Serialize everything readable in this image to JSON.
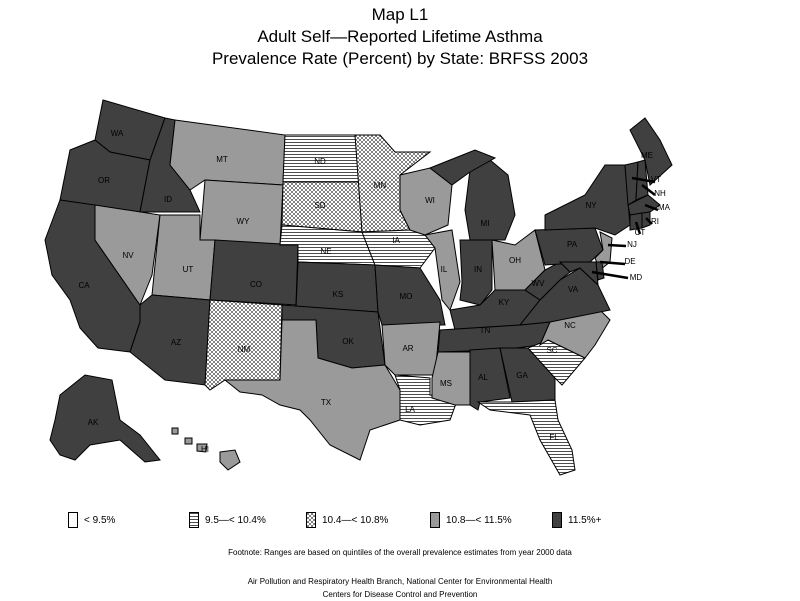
{
  "title": {
    "line1": "Map L1",
    "line2": "Adult Self—Reported Lifetime Asthma",
    "line3": "Prevalence Rate (Percent) by State: BRFSS 2003"
  },
  "legend": [
    {
      "key": "c1",
      "label": "< 9.5%"
    },
    {
      "key": "c2",
      "label": "9.5—< 10.4%"
    },
    {
      "key": "c3",
      "label": "10.4—< 10.8%"
    },
    {
      "key": "c4",
      "label": "10.8—< 11.5%"
    },
    {
      "key": "c5",
      "label": "11.5%+"
    }
  ],
  "footnote": "Footnote: Ranges are based on quintiles of the overall prevalence estimates from year 2000 data",
  "credits": {
    "line1": "Air Pollution and Respiratory Health Branch, National Center for Environmental Health",
    "line2": "Centers for Disease Control and Prevention"
  },
  "states": [
    {
      "abbr": "WA",
      "class": "c5"
    },
    {
      "abbr": "OR",
      "class": "c5"
    },
    {
      "abbr": "CA",
      "class": "c5"
    },
    {
      "abbr": "ID",
      "class": "c5"
    },
    {
      "abbr": "NV",
      "class": "c4"
    },
    {
      "abbr": "MT",
      "class": "c4"
    },
    {
      "abbr": "WY",
      "class": "c4"
    },
    {
      "abbr": "UT",
      "class": "c4"
    },
    {
      "abbr": "AZ",
      "class": "c5"
    },
    {
      "abbr": "CO",
      "class": "c5"
    },
    {
      "abbr": "NM",
      "class": "c3"
    },
    {
      "abbr": "ND",
      "class": "c2"
    },
    {
      "abbr": "SD",
      "class": "c3"
    },
    {
      "abbr": "NE",
      "class": "c2"
    },
    {
      "abbr": "KS",
      "class": "c5"
    },
    {
      "abbr": "OK",
      "class": "c5"
    },
    {
      "abbr": "TX",
      "class": "c4"
    },
    {
      "abbr": "MN",
      "class": "c3"
    },
    {
      "abbr": "IA",
      "class": "c2"
    },
    {
      "abbr": "MO",
      "class": "c5"
    },
    {
      "abbr": "AR",
      "class": "c4"
    },
    {
      "abbr": "LA",
      "class": "c2"
    },
    {
      "abbr": "WI",
      "class": "c4"
    },
    {
      "abbr": "IL",
      "class": "c4"
    },
    {
      "abbr": "MI",
      "class": "c5"
    },
    {
      "abbr": "IN",
      "class": "c5"
    },
    {
      "abbr": "OH",
      "class": "c4"
    },
    {
      "abbr": "KY",
      "class": "c5"
    },
    {
      "abbr": "TN",
      "class": "c5"
    },
    {
      "abbr": "MS",
      "class": "c4"
    },
    {
      "abbr": "AL",
      "class": "c5"
    },
    {
      "abbr": "GA",
      "class": "c5"
    },
    {
      "abbr": "FL",
      "class": "c2"
    },
    {
      "abbr": "SC",
      "class": "c2"
    },
    {
      "abbr": "NC",
      "class": "c4"
    },
    {
      "abbr": "VA",
      "class": "c5"
    },
    {
      "abbr": "WV",
      "class": "c5"
    },
    {
      "abbr": "PA",
      "class": "c5"
    },
    {
      "abbr": "NY",
      "class": "c5"
    },
    {
      "abbr": "ME",
      "class": "c5"
    },
    {
      "abbr": "VT",
      "class": "c5"
    },
    {
      "abbr": "NH",
      "class": "c5"
    },
    {
      "abbr": "MA",
      "class": "c5"
    },
    {
      "abbr": "CT",
      "class": "c5"
    },
    {
      "abbr": "RI",
      "class": "c5"
    },
    {
      "abbr": "NJ",
      "class": "c4"
    },
    {
      "abbr": "DE",
      "class": "c5"
    },
    {
      "abbr": "MD",
      "class": "c5"
    },
    {
      "abbr": "AK",
      "class": "c5"
    },
    {
      "abbr": "HI",
      "class": "c4"
    }
  ],
  "colors": {
    "c1": "#ffffff",
    "c2": "hlines",
    "c3": "crosshatch",
    "c4": "#9a9a9a",
    "c5": "#404040"
  }
}
